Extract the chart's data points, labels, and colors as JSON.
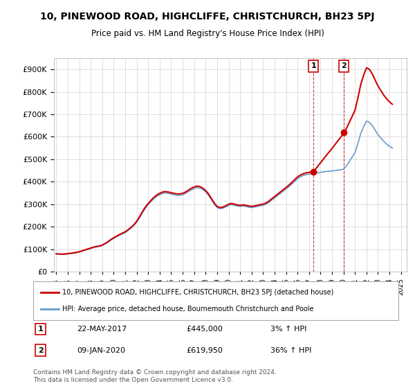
{
  "title": "10, PINEWOOD ROAD, HIGHCLIFFE, CHRISTCHURCH, BH23 5PJ",
  "subtitle": "Price paid vs. HM Land Registry's House Price Index (HPI)",
  "ylabel_ticks": [
    "£0",
    "£100K",
    "£200K",
    "£300K",
    "£400K",
    "£500K",
    "£600K",
    "£700K",
    "£800K",
    "£900K"
  ],
  "ylim": [
    0,
    950000
  ],
  "xlim_start": 1995.0,
  "xlim_end": 2025.5,
  "sale1": {
    "date_x": 2017.39,
    "price": 445000,
    "label": "1",
    "date_str": "22-MAY-2017",
    "price_str": "£445,000",
    "pct": "3% ↑ HPI"
  },
  "sale2": {
    "date_x": 2020.03,
    "price": 619950,
    "label": "2",
    "date_str": "09-JAN-2020",
    "price_str": "£619,950",
    "pct": "36% ↑ HPI"
  },
  "line_color_property": "#cc0000",
  "line_color_hpi": "#6699cc",
  "marker_color": "#cc0000",
  "vline_color": "#cc0000",
  "background_color": "#ffffff",
  "grid_color": "#dddddd",
  "legend_label_property": "10, PINEWOOD ROAD, HIGHCLIFFE, CHRISTCHURCH, BH23 5PJ (detached house)",
  "legend_label_hpi": "HPI: Average price, detached house, Bournemouth Christchurch and Poole",
  "footer": "Contains HM Land Registry data © Crown copyright and database right 2024.\nThis data is licensed under the Open Government Licence v3.0.",
  "hpi_data": {
    "years": [
      1995.0,
      1995.25,
      1995.5,
      1995.75,
      1996.0,
      1996.25,
      1996.5,
      1996.75,
      1997.0,
      1997.25,
      1997.5,
      1997.75,
      1998.0,
      1998.25,
      1998.5,
      1998.75,
      1999.0,
      1999.25,
      1999.5,
      1999.75,
      2000.0,
      2000.25,
      2000.5,
      2000.75,
      2001.0,
      2001.25,
      2001.5,
      2001.75,
      2002.0,
      2002.25,
      2002.5,
      2002.75,
      2003.0,
      2003.25,
      2003.5,
      2003.75,
      2004.0,
      2004.25,
      2004.5,
      2004.75,
      2005.0,
      2005.25,
      2005.5,
      2005.75,
      2006.0,
      2006.25,
      2006.5,
      2006.75,
      2007.0,
      2007.25,
      2007.5,
      2007.75,
      2008.0,
      2008.25,
      2008.5,
      2008.75,
      2009.0,
      2009.25,
      2009.5,
      2009.75,
      2010.0,
      2010.25,
      2010.5,
      2010.75,
      2011.0,
      2011.25,
      2011.5,
      2011.75,
      2012.0,
      2012.25,
      2012.5,
      2012.75,
      2013.0,
      2013.25,
      2013.5,
      2013.75,
      2014.0,
      2014.25,
      2014.5,
      2014.75,
      2015.0,
      2015.25,
      2015.5,
      2015.75,
      2016.0,
      2016.25,
      2016.5,
      2016.75,
      2017.0,
      2017.25,
      2017.5,
      2017.75,
      2018.0,
      2018.25,
      2018.5,
      2018.75,
      2019.0,
      2019.25,
      2019.5,
      2019.75,
      2020.0,
      2020.25,
      2020.5,
      2020.75,
      2021.0,
      2021.25,
      2021.5,
      2021.75,
      2022.0,
      2022.25,
      2022.5,
      2022.75,
      2023.0,
      2023.25,
      2023.5,
      2023.75,
      2024.0,
      2024.25
    ],
    "values": [
      78000,
      77000,
      76500,
      77000,
      79000,
      80000,
      82000,
      84000,
      87000,
      91000,
      95000,
      99000,
      103000,
      107000,
      110000,
      112000,
      116000,
      123000,
      131000,
      140000,
      148000,
      155000,
      162000,
      168000,
      174000,
      183000,
      193000,
      205000,
      220000,
      240000,
      262000,
      282000,
      298000,
      312000,
      325000,
      335000,
      342000,
      348000,
      350000,
      348000,
      345000,
      342000,
      340000,
      340000,
      342000,
      348000,
      356000,
      364000,
      370000,
      374000,
      372000,
      365000,
      355000,
      340000,
      320000,
      300000,
      285000,
      280000,
      282000,
      288000,
      295000,
      298000,
      295000,
      292000,
      290000,
      292000,
      290000,
      287000,
      285000,
      287000,
      290000,
      293000,
      295000,
      300000,
      308000,
      318000,
      328000,
      338000,
      348000,
      358000,
      368000,
      378000,
      390000,
      402000,
      414000,
      422000,
      428000,
      432000,
      434000,
      436000,
      438000,
      440000,
      442000,
      444000,
      446000,
      447000,
      448000,
      450000,
      452000,
      453000,
      456000,
      470000,
      490000,
      510000,
      530000,
      570000,
      615000,
      645000,
      670000,
      665000,
      650000,
      630000,
      610000,
      595000,
      580000,
      568000,
      558000,
      550000
    ]
  },
  "property_data": {
    "years": [
      2017.39,
      2020.03
    ],
    "values": [
      445000,
      619950
    ]
  }
}
